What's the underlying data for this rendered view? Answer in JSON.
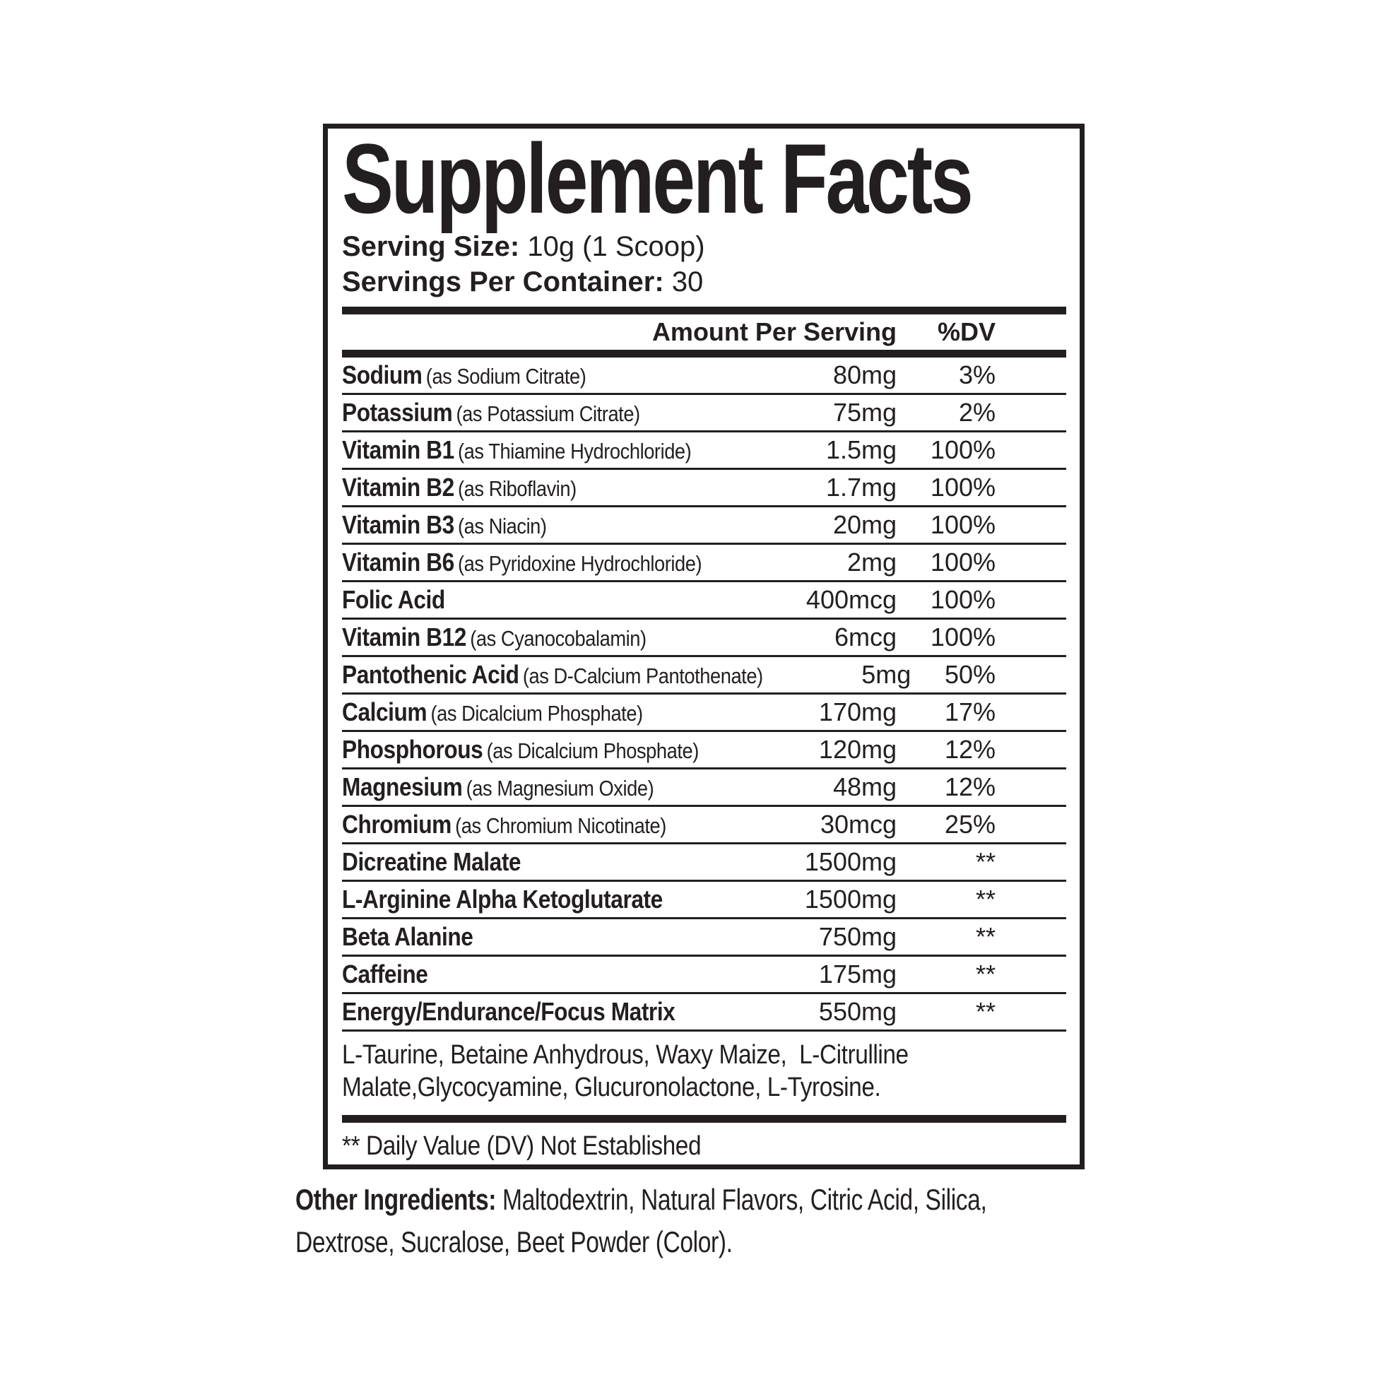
{
  "label": {
    "title": "Supplement Facts",
    "serving_size_label": "Serving Size:",
    "serving_size_value": "10g (1 Scoop)",
    "servings_per_container_label": "Servings Per Container:",
    "servings_per_container_value": "30",
    "header": {
      "amount": "Amount Per Serving",
      "dv": "%DV"
    },
    "rows": [
      {
        "name": "Sodium",
        "detail": "(as Sodium Citrate)",
        "amount": "80mg",
        "dv": "3%"
      },
      {
        "name": "Potassium",
        "detail": "(as Potassium Citrate)",
        "amount": "75mg",
        "dv": "2%"
      },
      {
        "name": "Vitamin B1",
        "detail": "(as Thiamine Hydrochloride)",
        "amount": "1.5mg",
        "dv": "100%"
      },
      {
        "name": "Vitamin B2",
        "detail": "(as Riboflavin)",
        "amount": "1.7mg",
        "dv": "100%"
      },
      {
        "name": "Vitamin B3",
        "detail": "(as Niacin)",
        "amount": "20mg",
        "dv": "100%"
      },
      {
        "name": "Vitamin B6",
        "detail": "(as Pyridoxine Hydrochloride)",
        "amount": "2mg",
        "dv": "100%"
      },
      {
        "name": "Folic Acid",
        "detail": "",
        "amount": "400mcg",
        "dv": "100%"
      },
      {
        "name": "Vitamin B12",
        "detail": "(as Cyanocobalamin)",
        "amount": "6mcg",
        "dv": "100%"
      },
      {
        "name": "Pantothenic Acid",
        "detail": "(as D-Calcium Pantothenate)",
        "amount": "5mg",
        "dv": "50%"
      },
      {
        "name": "Calcium",
        "detail": "(as Dicalcium Phosphate)",
        "amount": "170mg",
        "dv": "17%"
      },
      {
        "name": "Phosphorous",
        "detail": "(as Dicalcium Phosphate)",
        "amount": "120mg",
        "dv": "12%"
      },
      {
        "name": "Magnesium",
        "detail": "(as Magnesium Oxide)",
        "amount": "48mg",
        "dv": "12%"
      },
      {
        "name": "Chromium",
        "detail": "(as Chromium Nicotinate)",
        "amount": "30mcg",
        "dv": "25%"
      },
      {
        "name": "Dicreatine Malate",
        "detail": "",
        "amount": "1500mg",
        "dv": "**"
      },
      {
        "name": "L-Arginine Alpha Ketoglutarate",
        "detail": "",
        "amount": "1500mg",
        "dv": "**"
      },
      {
        "name": "Beta Alanine",
        "detail": "",
        "amount": "750mg",
        "dv": "**"
      },
      {
        "name": "Caffeine",
        "detail": "",
        "amount": "175mg",
        "dv": "**"
      },
      {
        "name": "Energy/Endurance/Focus Matrix",
        "detail": "",
        "amount": "550mg",
        "dv": "**"
      }
    ],
    "matrix_ingredients": "L-Taurine, Betaine Anhydrous, Waxy Maize,  L-Citrulline Malate,Glycocyamine, Glucuronolactone, L-Tyrosine.",
    "footnote": "** Daily Value (DV) Not Established"
  },
  "other_ingredients": {
    "label": "Other Ingredients:",
    "value": "Maltodextrin, Natural Flavors, Citric Acid, Silica, Dextrose, Sucralose, Beet Powder (Color)."
  }
}
